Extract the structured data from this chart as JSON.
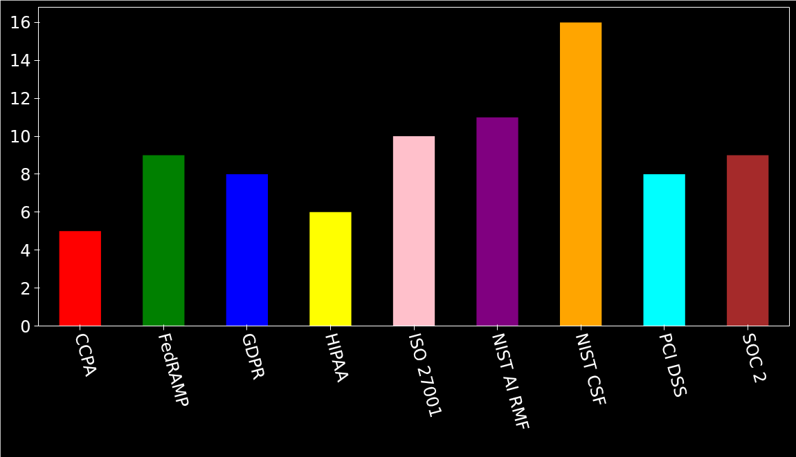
{
  "chart_data": {
    "type": "bar",
    "categories": [
      "CCPA",
      "FedRAMP",
      "GDPR",
      "HIPAA",
      "ISO 27001",
      "NIST AI RMF",
      "NIST CSF",
      "PCI DSS",
      "SOC 2"
    ],
    "values": [
      5,
      9,
      8,
      6,
      10,
      11,
      16,
      8,
      9
    ],
    "colors": [
      "#ff0000",
      "#008000",
      "#0000ff",
      "#ffff00",
      "#ffc0cb",
      "#800080",
      "#ffa500",
      "#00ffff",
      "#a52a2a"
    ],
    "ylim": [
      0,
      16.8
    ],
    "yticks": [
      0,
      2,
      4,
      6,
      8,
      10,
      12,
      14,
      16
    ],
    "grid": false
  }
}
